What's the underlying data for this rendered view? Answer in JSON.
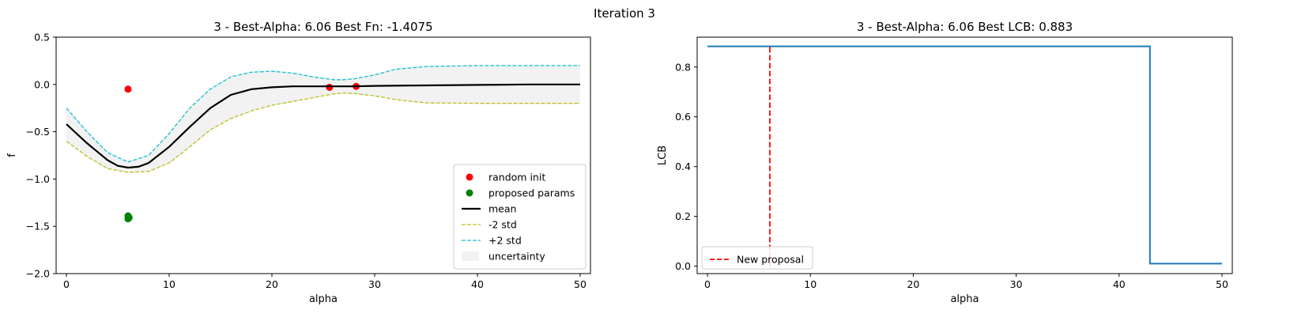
{
  "figure": {
    "suptitle": "Iteration 3"
  },
  "chart_data": [
    {
      "type": "line",
      "title": "3 - Best-Alpha: 6.06 Best Fn: -1.4075",
      "xlabel": "alpha",
      "ylabel": "f",
      "xlim": [
        -1,
        51
      ],
      "ylim": [
        -2.0,
        0.5
      ],
      "xticks": [
        0,
        10,
        20,
        30,
        40,
        50
      ],
      "yticks": [
        0.5,
        0.0,
        -0.5,
        -1.0,
        -1.5,
        -2.0
      ],
      "ytick_labels": [
        "0.5",
        "0.0",
        "−0.5",
        "−1.0",
        "−1.5",
        "−2.0"
      ],
      "grid": false,
      "legend_position": "lower-right",
      "series": [
        {
          "name": "random init",
          "kind": "scatter",
          "color": "#ff0000",
          "x": [
            6.0,
            25.6,
            28.2
          ],
          "y": [
            -0.05,
            -0.03,
            -0.02
          ]
        },
        {
          "name": "proposed params",
          "kind": "scatter",
          "color": "#008000",
          "x": [
            6.0,
            6.06,
            6.1,
            6.0
          ],
          "y": [
            -1.39,
            -1.41,
            -1.4075,
            -1.42
          ]
        },
        {
          "name": "mean",
          "kind": "line",
          "color": "#000000",
          "x": [
            0,
            2,
            4,
            5,
            6,
            7,
            8,
            10,
            12,
            14,
            16,
            18,
            20,
            22,
            24,
            26,
            28,
            30,
            35,
            40,
            45,
            50
          ],
          "y": [
            -0.42,
            -0.62,
            -0.8,
            -0.86,
            -0.88,
            -0.87,
            -0.83,
            -0.66,
            -0.45,
            -0.25,
            -0.11,
            -0.05,
            -0.03,
            -0.02,
            -0.02,
            -0.02,
            -0.02,
            -0.015,
            -0.01,
            -0.005,
            0.0,
            0.0
          ]
        },
        {
          "name": "-2 std",
          "kind": "line",
          "dashed": true,
          "color": "#bcbd22",
          "x": [
            0,
            2,
            4,
            6,
            8,
            10,
            12,
            14,
            16,
            18,
            20,
            22,
            24,
            26,
            27,
            28,
            30,
            32,
            35,
            40,
            45,
            50
          ],
          "y": [
            -0.6,
            -0.76,
            -0.89,
            -0.93,
            -0.92,
            -0.83,
            -0.66,
            -0.48,
            -0.36,
            -0.28,
            -0.22,
            -0.18,
            -0.14,
            -0.1,
            -0.09,
            -0.095,
            -0.12,
            -0.16,
            -0.195,
            -0.2,
            -0.2,
            -0.2
          ]
        },
        {
          "name": "+2 std",
          "kind": "line",
          "dashed": true,
          "color": "#17becf",
          "x": [
            0,
            2,
            4,
            6,
            8,
            10,
            12,
            14,
            16,
            18,
            20,
            22,
            24,
            26,
            27,
            28,
            30,
            32,
            35,
            40,
            45,
            50
          ],
          "y": [
            -0.25,
            -0.5,
            -0.72,
            -0.82,
            -0.75,
            -0.52,
            -0.25,
            -0.05,
            0.08,
            0.13,
            0.14,
            0.12,
            0.08,
            0.05,
            0.05,
            0.06,
            0.1,
            0.16,
            0.19,
            0.2,
            0.2,
            0.2
          ]
        },
        {
          "name": "uncertainty",
          "kind": "band",
          "color": "#f2f2f2",
          "lower_of": "-2 std",
          "upper_of": "+2 std"
        }
      ]
    },
    {
      "type": "line",
      "title": "3 - Best-Alpha: 6.06 Best LCB: 0.883",
      "xlabel": "alpha",
      "ylabel": "LCB",
      "xlim": [
        -1,
        51
      ],
      "ylim": [
        -0.03,
        0.92
      ],
      "xticks": [
        0,
        10,
        20,
        30,
        40,
        50
      ],
      "yticks": [
        0.0,
        0.2,
        0.4,
        0.6,
        0.8
      ],
      "ytick_labels": [
        "0.0",
        "0.2",
        "0.4",
        "0.6",
        "0.8"
      ],
      "grid": false,
      "legend_position": "lower-left",
      "series": [
        {
          "name": "",
          "kind": "line",
          "color": "#1f77b4",
          "x": [
            0,
            43,
            43,
            50
          ],
          "y": [
            0.883,
            0.883,
            0.01,
            0.01
          ]
        },
        {
          "name": "New proposal",
          "kind": "vline",
          "dashed": true,
          "color": "#ff0000",
          "x": 6.06,
          "y_range": [
            0.0,
            0.883
          ]
        }
      ]
    }
  ]
}
